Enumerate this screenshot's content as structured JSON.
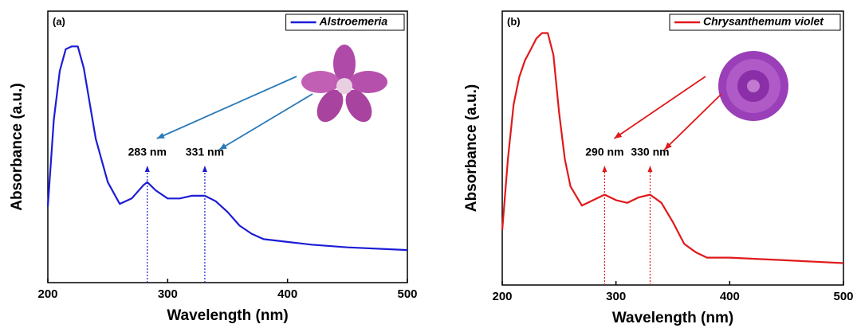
{
  "chart_data": [
    {
      "type": "line",
      "panel": "(a)",
      "xlabel": "Wavelength (nm)",
      "ylabel": "Absorbance (a.u.)",
      "xlim": [
        200,
        500
      ],
      "xticks": [
        200,
        300,
        400,
        500
      ],
      "ylim": [
        0,
        100
      ],
      "x": [
        200,
        205,
        210,
        215,
        220,
        225,
        230,
        235,
        240,
        250,
        260,
        270,
        280,
        283,
        290,
        300,
        310,
        320,
        331,
        340,
        350,
        360,
        370,
        380,
        400,
        420,
        450,
        500
      ],
      "series": [
        {
          "name": "Alstroemeria",
          "color": "#1c1cd6",
          "values": [
            28,
            60,
            78,
            86,
            87,
            87,
            79,
            66,
            53,
            37,
            29,
            31,
            36,
            37,
            34,
            31,
            31,
            32,
            32,
            30,
            26,
            21,
            18,
            16,
            15,
            14,
            13,
            12
          ]
        }
      ],
      "annotations": [
        {
          "text": "283 nm",
          "x": 283
        },
        {
          "text": "331 nm",
          "x": 331
        }
      ]
    },
    {
      "type": "line",
      "panel": "(b)",
      "xlabel": "Wavelength (nm)",
      "ylabel": "Absorbance (a.u.)",
      "xlim": [
        200,
        500
      ],
      "xticks": [
        200,
        300,
        400,
        500
      ],
      "ylim": [
        0,
        100
      ],
      "x": [
        200,
        205,
        210,
        215,
        220,
        225,
        230,
        235,
        240,
        245,
        250,
        255,
        260,
        270,
        280,
        290,
        300,
        310,
        320,
        330,
        340,
        350,
        360,
        370,
        380,
        400,
        450,
        500
      ],
      "series": [
        {
          "name": "Chrysanthemum violet",
          "color": "#e0191b",
          "values": [
            20,
            46,
            66,
            76,
            82,
            86,
            90,
            92,
            92,
            84,
            63,
            46,
            36,
            29,
            31,
            33,
            31,
            30,
            32,
            33,
            30,
            23,
            15,
            12,
            10,
            10,
            9,
            8
          ]
        }
      ],
      "annotations": [
        {
          "text": "290 nm",
          "x": 290
        },
        {
          "text": "330 nm",
          "x": 330
        }
      ]
    }
  ]
}
